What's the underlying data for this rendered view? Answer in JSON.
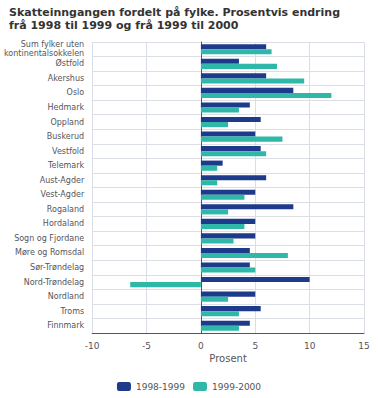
{
  "chart_data": {
    "type": "bar",
    "title": "Skatteinngangen fordelt på fylke. Prosentvis endring",
    "subtitle": "frå 1998 til 1999 og frå 1999 til 2000",
    "orientation": "horizontal",
    "categories": [
      "Sum fylker uten\nkontinentalsokkelen",
      "Østfold",
      "Akershus",
      "Oslo",
      "Hedmark",
      "Oppland",
      "Buskerud",
      "Vestfold",
      "Telemark",
      "Aust-Agder",
      "Vest-Agder",
      "Rogaland",
      "Hordaland",
      "Sogn og Fjordane",
      "Møre og Romsdal",
      "Sør-Trøndelag",
      "Nord-Trøndelag",
      "Nordland",
      "Troms",
      "Finnmark"
    ],
    "series": [
      {
        "name": "1998-1999",
        "color": "#1e3a8a",
        "values": [
          6.0,
          3.5,
          6.0,
          8.5,
          4.5,
          5.5,
          5.0,
          5.5,
          2.0,
          6.0,
          5.0,
          8.5,
          5.0,
          5.0,
          4.5,
          4.5,
          10.0,
          5.0,
          5.5,
          4.5
        ]
      },
      {
        "name": "1999-2000",
        "color": "#2fb8a8",
        "values": [
          6.5,
          7.0,
          9.5,
          12.0,
          3.5,
          2.5,
          7.5,
          6.0,
          1.5,
          1.5,
          4.0,
          2.5,
          4.0,
          3.0,
          8.0,
          5.0,
          -6.5,
          2.5,
          3.5,
          3.5
        ]
      }
    ],
    "xlabel": "Prosent",
    "xlim": [
      -10,
      15
    ],
    "xticks": [
      -10,
      -5,
      0,
      5,
      10,
      15
    ],
    "grid": true,
    "legend": "bottom"
  }
}
